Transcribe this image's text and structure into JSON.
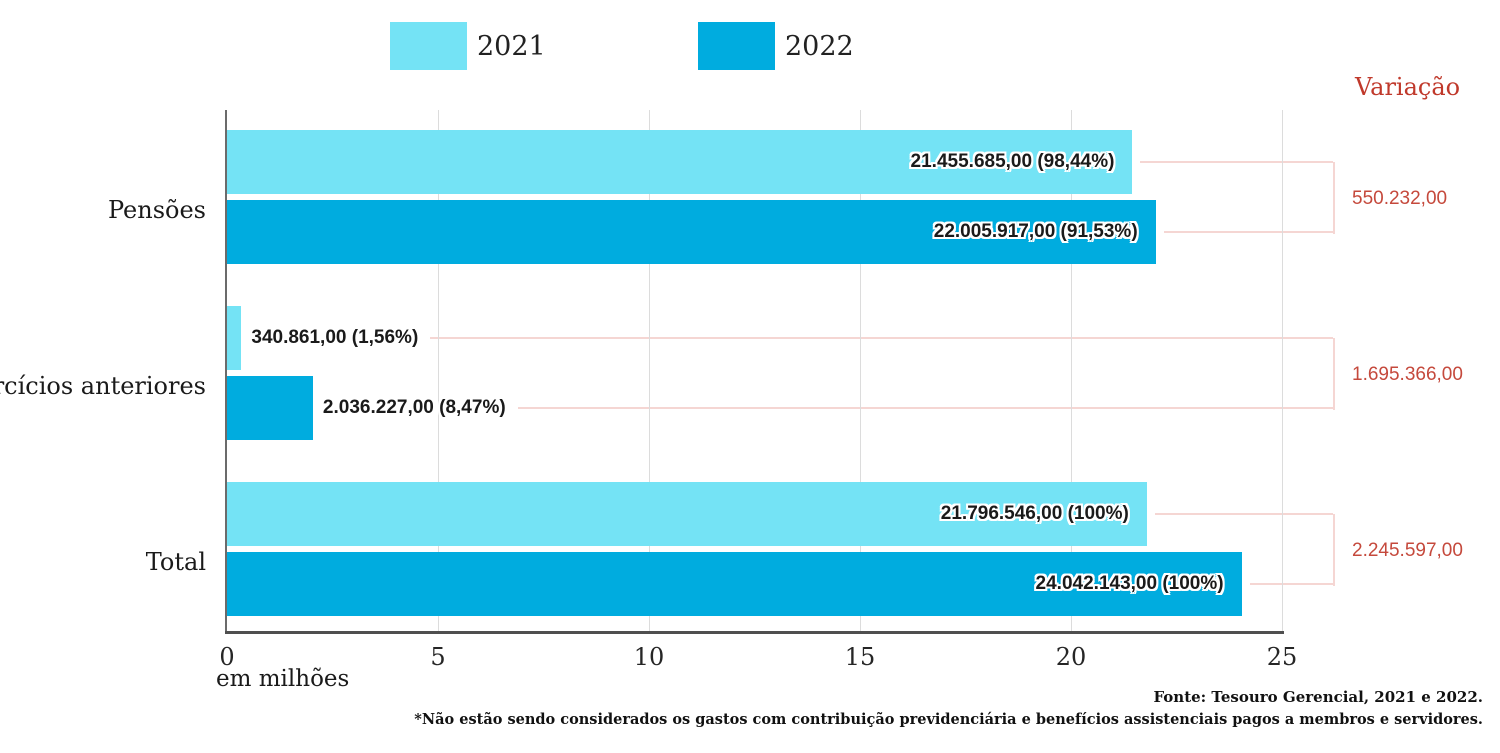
{
  "chart_data": {
    "type": "bar",
    "orientation": "horizontal",
    "xlabel": "em milhões",
    "unit_note": "values plotted in millions",
    "categories": [
      "Pensões",
      "Exercícios anteriores",
      "Total"
    ],
    "series": [
      {
        "name": "2021",
        "color": "#74e3f5",
        "values": [
          21455685.0,
          340861.0,
          21796546.0
        ],
        "labels": [
          "21.455.685,00 (98,44%)",
          "340.861,00 (1,56%)",
          "21.796.546,00 (100%)"
        ]
      },
      {
        "name": "2022",
        "color": "#00acdf",
        "values": [
          22005917.0,
          2036227.0,
          24042143.0
        ],
        "labels": [
          "22.005.917,00 (91,53%)",
          "2.036.227,00 (8,47%)",
          "24.042.143,00 (100%)"
        ]
      }
    ],
    "variation": {
      "header": "Variação",
      "values": [
        "550.232,00",
        "1.695.366,00",
        "2.245.597,00"
      ]
    },
    "x_ticks": [
      "0",
      "5",
      "10",
      "15",
      "20",
      "25"
    ],
    "xlim": [
      0,
      25
    ],
    "grid": true,
    "legend_position": "top"
  },
  "colors": {
    "accent_2021": "#74e3f5",
    "accent_2022": "#00acdf",
    "variation_red": "#c0392b",
    "connector_pink": "#f5d6d3"
  },
  "footer": {
    "fonte": "Fonte: Tesouro Gerencial, 2021 e 2022.",
    "footnote": "*Não estão sendo considerados os gastos com contribuição previdenciária e benefícios assistenciais pagos a membros e servidores."
  }
}
